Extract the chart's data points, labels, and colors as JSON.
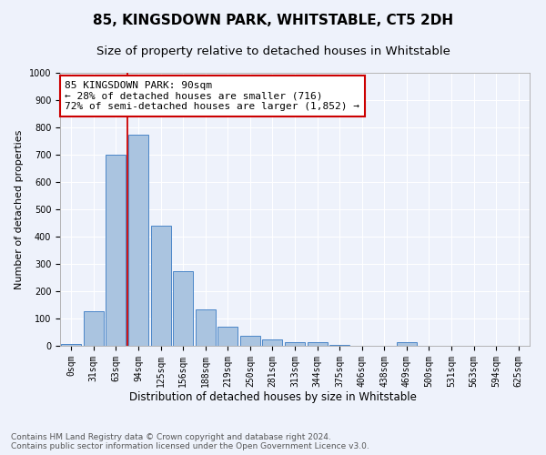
{
  "title": "85, KINGSDOWN PARK, WHITSTABLE, CT5 2DH",
  "subtitle": "Size of property relative to detached houses in Whitstable",
  "xlabel": "Distribution of detached houses by size in Whitstable",
  "ylabel": "Number of detached properties",
  "categories": [
    "0sqm",
    "31sqm",
    "63sqm",
    "94sqm",
    "125sqm",
    "156sqm",
    "188sqm",
    "219sqm",
    "250sqm",
    "281sqm",
    "313sqm",
    "344sqm",
    "375sqm",
    "406sqm",
    "438sqm",
    "469sqm",
    "500sqm",
    "531sqm",
    "563sqm",
    "594sqm",
    "625sqm"
  ],
  "bar_values": [
    8,
    128,
    700,
    775,
    440,
    275,
    135,
    70,
    38,
    25,
    13,
    12,
    5,
    0,
    0,
    12,
    0,
    0,
    0,
    0,
    0
  ],
  "bar_color": "#aac4e0",
  "bar_edge_color": "#4a86c8",
  "ylim": [
    0,
    1000
  ],
  "yticks": [
    0,
    100,
    200,
    300,
    400,
    500,
    600,
    700,
    800,
    900,
    1000
  ],
  "property_bin_index": 3,
  "vline_color": "#cc0000",
  "annotation_line1": "85 KINGSDOWN PARK: 90sqm",
  "annotation_line2": "← 28% of detached houses are smaller (716)",
  "annotation_line3": "72% of semi-detached houses are larger (1,852) →",
  "annotation_box_color": "#ffffff",
  "annotation_box_edge_color": "#cc0000",
  "footer_line1": "Contains HM Land Registry data © Crown copyright and database right 2024.",
  "footer_line2": "Contains public sector information licensed under the Open Government Licence v3.0.",
  "bg_color": "#eef2fb",
  "plot_bg_color": "#eef2fb",
  "grid_color": "#ffffff",
  "title_fontsize": 11,
  "subtitle_fontsize": 9.5,
  "xlabel_fontsize": 8.5,
  "ylabel_fontsize": 8,
  "tick_fontsize": 7,
  "annotation_fontsize": 8,
  "footer_fontsize": 6.5
}
